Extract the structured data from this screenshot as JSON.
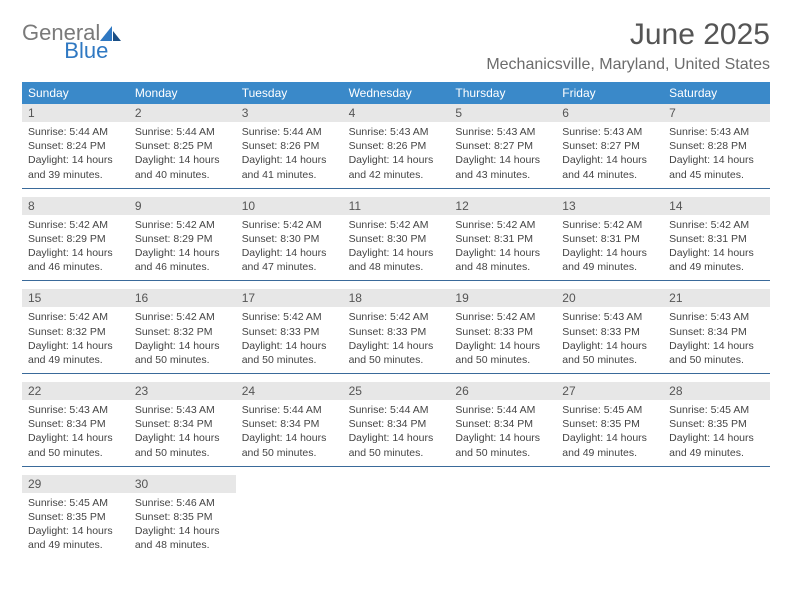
{
  "logo": {
    "part1": "General",
    "part2": "Blue"
  },
  "title": "June 2025",
  "location": "Mechanicsville, Maryland, United States",
  "colors": {
    "header_bg": "#3a89c9",
    "header_text": "#ffffff",
    "daynum_bg": "#e7e7e7",
    "border": "#3a6a9a",
    "logo_gray": "#7a7a7a",
    "logo_blue": "#2f78c2"
  },
  "weekdays": [
    "Sunday",
    "Monday",
    "Tuesday",
    "Wednesday",
    "Thursday",
    "Friday",
    "Saturday"
  ],
  "weeks": [
    [
      {
        "n": "1",
        "sr": "5:44 AM",
        "ss": "8:24 PM",
        "dl": "14 hours and 39 minutes."
      },
      {
        "n": "2",
        "sr": "5:44 AM",
        "ss": "8:25 PM",
        "dl": "14 hours and 40 minutes."
      },
      {
        "n": "3",
        "sr": "5:44 AM",
        "ss": "8:26 PM",
        "dl": "14 hours and 41 minutes."
      },
      {
        "n": "4",
        "sr": "5:43 AM",
        "ss": "8:26 PM",
        "dl": "14 hours and 42 minutes."
      },
      {
        "n": "5",
        "sr": "5:43 AM",
        "ss": "8:27 PM",
        "dl": "14 hours and 43 minutes."
      },
      {
        "n": "6",
        "sr": "5:43 AM",
        "ss": "8:27 PM",
        "dl": "14 hours and 44 minutes."
      },
      {
        "n": "7",
        "sr": "5:43 AM",
        "ss": "8:28 PM",
        "dl": "14 hours and 45 minutes."
      }
    ],
    [
      {
        "n": "8",
        "sr": "5:42 AM",
        "ss": "8:29 PM",
        "dl": "14 hours and 46 minutes."
      },
      {
        "n": "9",
        "sr": "5:42 AM",
        "ss": "8:29 PM",
        "dl": "14 hours and 46 minutes."
      },
      {
        "n": "10",
        "sr": "5:42 AM",
        "ss": "8:30 PM",
        "dl": "14 hours and 47 minutes."
      },
      {
        "n": "11",
        "sr": "5:42 AM",
        "ss": "8:30 PM",
        "dl": "14 hours and 48 minutes."
      },
      {
        "n": "12",
        "sr": "5:42 AM",
        "ss": "8:31 PM",
        "dl": "14 hours and 48 minutes."
      },
      {
        "n": "13",
        "sr": "5:42 AM",
        "ss": "8:31 PM",
        "dl": "14 hours and 49 minutes."
      },
      {
        "n": "14",
        "sr": "5:42 AM",
        "ss": "8:31 PM",
        "dl": "14 hours and 49 minutes."
      }
    ],
    [
      {
        "n": "15",
        "sr": "5:42 AM",
        "ss": "8:32 PM",
        "dl": "14 hours and 49 minutes."
      },
      {
        "n": "16",
        "sr": "5:42 AM",
        "ss": "8:32 PM",
        "dl": "14 hours and 50 minutes."
      },
      {
        "n": "17",
        "sr": "5:42 AM",
        "ss": "8:33 PM",
        "dl": "14 hours and 50 minutes."
      },
      {
        "n": "18",
        "sr": "5:42 AM",
        "ss": "8:33 PM",
        "dl": "14 hours and 50 minutes."
      },
      {
        "n": "19",
        "sr": "5:42 AM",
        "ss": "8:33 PM",
        "dl": "14 hours and 50 minutes."
      },
      {
        "n": "20",
        "sr": "5:43 AM",
        "ss": "8:33 PM",
        "dl": "14 hours and 50 minutes."
      },
      {
        "n": "21",
        "sr": "5:43 AM",
        "ss": "8:34 PM",
        "dl": "14 hours and 50 minutes."
      }
    ],
    [
      {
        "n": "22",
        "sr": "5:43 AM",
        "ss": "8:34 PM",
        "dl": "14 hours and 50 minutes."
      },
      {
        "n": "23",
        "sr": "5:43 AM",
        "ss": "8:34 PM",
        "dl": "14 hours and 50 minutes."
      },
      {
        "n": "24",
        "sr": "5:44 AM",
        "ss": "8:34 PM",
        "dl": "14 hours and 50 minutes."
      },
      {
        "n": "25",
        "sr": "5:44 AM",
        "ss": "8:34 PM",
        "dl": "14 hours and 50 minutes."
      },
      {
        "n": "26",
        "sr": "5:44 AM",
        "ss": "8:34 PM",
        "dl": "14 hours and 50 minutes."
      },
      {
        "n": "27",
        "sr": "5:45 AM",
        "ss": "8:35 PM",
        "dl": "14 hours and 49 minutes."
      },
      {
        "n": "28",
        "sr": "5:45 AM",
        "ss": "8:35 PM",
        "dl": "14 hours and 49 minutes."
      }
    ],
    [
      {
        "n": "29",
        "sr": "5:45 AM",
        "ss": "8:35 PM",
        "dl": "14 hours and 49 minutes."
      },
      {
        "n": "30",
        "sr": "5:46 AM",
        "ss": "8:35 PM",
        "dl": "14 hours and 48 minutes."
      },
      null,
      null,
      null,
      null,
      null
    ]
  ],
  "labels": {
    "sunrise": "Sunrise: ",
    "sunset": "Sunset: ",
    "daylight": "Daylight: "
  }
}
